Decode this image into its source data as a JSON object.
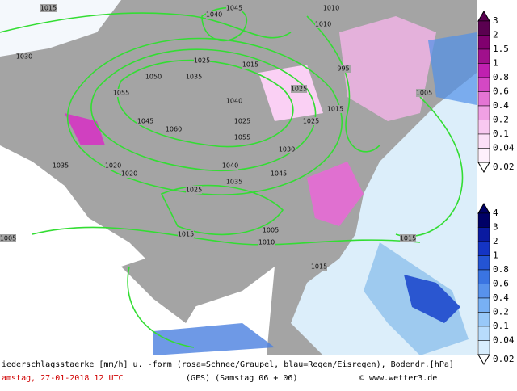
{
  "map": {
    "isobar_labels": [
      "1005",
      "1010",
      "1015",
      "1020",
      "1025",
      "1030",
      "1035",
      "1040",
      "1045",
      "1050",
      "1055",
      "1060",
      "1055",
      "1045",
      "1040",
      "1035",
      "1025",
      "1025",
      "1025",
      "1015",
      "1015",
      "1015",
      "1010",
      "1010",
      "1005",
      "995",
      "1035",
      "1025",
      "1015",
      "1015",
      "1005",
      "1020",
      "1030",
      "1045",
      "1040"
    ]
  },
  "legend_snow": {
    "labels": [
      "3",
      "2",
      "1.5",
      "1",
      "0.8",
      "0.6",
      "0.4",
      "0.2",
      "0.1",
      "0.04",
      "0.02"
    ]
  },
  "legend_rain": {
    "labels": [
      "4",
      "3",
      "2",
      "1",
      "0.8",
      "0.6",
      "0.4",
      "0.2",
      "0.1",
      "0.04",
      "0.02"
    ]
  },
  "footer": {
    "description": "iederschlagsstaerke [mm/h] u. -form (rosa=Schnee/Graupel, blau=Regen/Eisregen), Bodendr.[hPa]",
    "date": "amstag, 27-01-2018  12 UTC",
    "model": "(GFS)  (Samstag 06 + 06)",
    "credit": "© www.wetter3.de"
  }
}
